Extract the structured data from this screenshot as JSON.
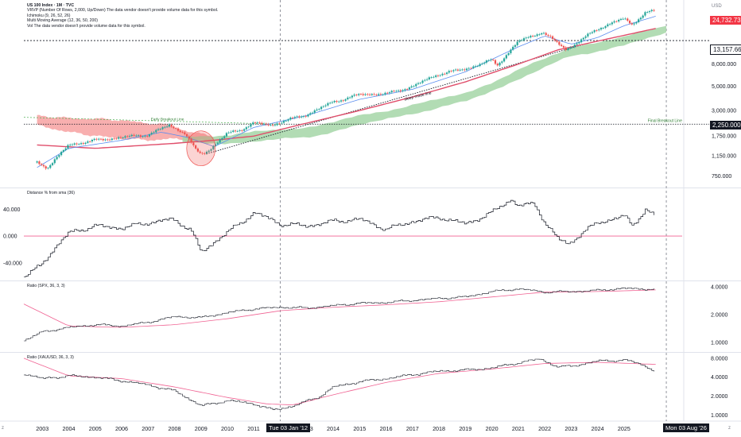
{
  "legend": {
    "title": "US 100 Index · 1M · TVC",
    "lines": [
      "VRVP (Number Of Rows, 2,000, Up/Down) The data vendor doesn't provide volume data for this symbol.",
      "Ichimoku (9, 26, 52, 26)",
      "Multi Moving Average (12, 36, 50, 200)",
      "Vol The data vendor doesn't provide volume data for this symbol."
    ]
  },
  "currency": "USD",
  "pane_labels": {
    "distance": "Distance % from sma (36)",
    "ratio_spx": "Ratio (SPX, 36, 3, 3)",
    "ratio_xau": "Ratio (XAUUSD, 36, 3, 3)"
  },
  "annotations": {
    "early_breakout": "Early Breakout Line",
    "final_breakout": "Final Breakout Line",
    "sleep_mode": "sleep mode line"
  },
  "price_tags": {
    "last": "24,732.732",
    "level_high": "13,157.664",
    "level_low": "2,250.000"
  },
  "crosshair_tags": {
    "left_date": "Tue 03 Jan '12",
    "right_date": "Mon 03 Aug '26"
  },
  "corner_labels": {
    "left": "z",
    "right": "z"
  },
  "colors": {
    "up": "#26a69a",
    "down": "#ef5350",
    "cloud_green": "#a5d6a7",
    "cloud_red": "#f7a1a1",
    "ma_red": "#e04e6b",
    "ma_blue": "#5b8def",
    "pane_line": "#131722",
    "ref_red": "#f06292"
  },
  "chart_data": {
    "type": "line",
    "title": "US 100 Index · 1M · TVC",
    "x_tick_labels": [
      "2003",
      "2004",
      "2005",
      "2006",
      "2007",
      "2008",
      "2009",
      "2010",
      "2011",
      "2012",
      "2013",
      "2014",
      "2015",
      "2016",
      "2017",
      "2018",
      "2019",
      "2020",
      "2021",
      "2022",
      "2023",
      "2024",
      "2025"
    ],
    "x_range": [
      2002.3,
      2027.2
    ],
    "price_pane": {
      "scale": "log",
      "ylim": [
        600,
        31000
      ],
      "y_tick_labels": [
        "8,000.000",
        "5,000.000",
        "3,000.000",
        "1,750.000",
        "1,150.000",
        "750.000"
      ],
      "y_ticks": [
        8000,
        5000,
        3000,
        1750,
        1150,
        750
      ],
      "price_keypoints": {
        "x": [
          2002.8,
          2003.2,
          2004.0,
          2005.0,
          2006.0,
          2007.0,
          2007.8,
          2008.4,
          2008.8,
          2009.0,
          2009.3,
          2010.0,
          2010.5,
          2011.0,
          2011.7,
          2012.0,
          2013.0,
          2014.0,
          2015.0,
          2016.1,
          2017.0,
          2018.0,
          2019.0,
          2020.0,
          2020.2,
          2021.0,
          2021.9,
          2022.8,
          2023.0,
          2024.0,
          2025.0,
          2025.3,
          2025.8,
          2026.2
        ],
        "y": [
          1000,
          900,
          1450,
          1600,
          1700,
          1800,
          2200,
          1850,
          1300,
          1200,
          1300,
          1850,
          2000,
          2300,
          2200,
          2350,
          2750,
          3600,
          4200,
          4300,
          5000,
          6500,
          7200,
          8700,
          7800,
          12900,
          15800,
          11000,
          11500,
          16900,
          21000,
          18500,
          23500,
          24732
        ]
      },
      "ma_long": {
        "x": [
          2002.8,
          2005.0,
          2008.0,
          2009.5,
          2011.0,
          2013.0,
          2015.0,
          2017.0,
          2019.0,
          2021.0,
          2022.5,
          2024.0,
          2026.2
        ],
        "y": [
          1450,
          1350,
          1500,
          1600,
          1750,
          2300,
          3000,
          4000,
          5500,
          8000,
          10800,
          13000,
          17000
        ]
      },
      "ma_blue": {
        "x": [
          2002.8,
          2004.0,
          2006.0,
          2007.5,
          2008.5,
          2009.5,
          2011.0,
          2013.0,
          2015.0,
          2017.0,
          2019.0,
          2021.0,
          2022.0,
          2023.0,
          2024.0,
          2025.0,
          2026.2
        ],
        "y": [
          900,
          1350,
          1600,
          1900,
          1700,
          1400,
          2100,
          2700,
          3800,
          4700,
          6800,
          11500,
          14500,
          12200,
          14000,
          18000,
          22000
        ]
      },
      "cloud_green": {
        "x": [
          2008.3,
          2010.0,
          2013.0,
          2016.0,
          2019.0,
          2021.0,
          2023.0,
          2025.0,
          2026.6
        ],
        "top": [
          1700,
          1800,
          2100,
          3000,
          4300,
          7000,
          11500,
          14000,
          18500
        ],
        "bottom": [
          1500,
          1500,
          1700,
          2500,
          3600,
          5800,
          9500,
          11800,
          15500
        ]
      },
      "cloud_red": {
        "x": [
          2002.8,
          2004.0,
          2005.5,
          2007.0,
          2007.8,
          2008.6,
          2009.5
        ],
        "top": [
          2700,
          2550,
          2500,
          2300,
          2200,
          1900,
          1750
        ],
        "bottom": [
          2200,
          1900,
          1700,
          1600,
          1650,
          1600,
          1600
        ]
      },
      "horizontal_levels": [
        13157.664,
        2250
      ],
      "early_breakout_line": {
        "x": [
          2002.3,
          2012.0
        ],
        "y": [
          2600,
          2250
        ]
      },
      "sleep_mode_line": {
        "x": [
          2009.2,
          2023.5
        ],
        "y": [
          1200,
          12200
        ]
      }
    },
    "distance_pane": {
      "ylim": [
        -65,
        70
      ],
      "y_tick_labels": [
        "40.000",
        "0.000",
        "-40.000"
      ],
      "y_ticks": [
        40,
        0,
        -40
      ],
      "reference_line": 0,
      "keypoints": {
        "x": [
          2002.3,
          2002.9,
          2003.4,
          2004.0,
          2005.0,
          2006.0,
          2007.0,
          2007.9,
          2008.6,
          2009.0,
          2009.6,
          2010.5,
          2011.0,
          2011.6,
          2012.0,
          2013.0,
          2014.0,
          2015.0,
          2016.0,
          2017.0,
          2018.0,
          2019.0,
          2020.0,
          2020.7,
          2021.0,
          2021.6,
          2022.0,
          2022.5,
          2022.9,
          2023.4,
          2024.0,
          2025.0,
          2025.3,
          2025.8,
          2026.2
        ],
        "y": [
          -60,
          -45,
          -20,
          5,
          15,
          12,
          20,
          25,
          10,
          -25,
          -5,
          20,
          35,
          25,
          18,
          15,
          22,
          25,
          10,
          22,
          28,
          18,
          35,
          55,
          45,
          48,
          20,
          -5,
          -12,
          5,
          20,
          30,
          15,
          40,
          28
        ]
      }
    },
    "ratio_spx_pane": {
      "ylim": [
        0.8,
        4.5
      ],
      "y_tick_labels": [
        "4.0000",
        "2.0000",
        "1.0000"
      ],
      "y_ticks": [
        4,
        2,
        1
      ],
      "ratio_keypoints": {
        "x": [
          2002.3,
          2003.0,
          2004.0,
          2005.0,
          2006.0,
          2007.0,
          2008.0,
          2009.0,
          2010.0,
          2011.0,
          2012.0,
          2013.0,
          2014.0,
          2015.0,
          2016.0,
          2017.0,
          2018.0,
          2019.0,
          2020.0,
          2021.0,
          2022.0,
          2023.0,
          2024.0,
          2025.0,
          2026.2
        ],
        "y": [
          1.05,
          1.3,
          1.45,
          1.55,
          1.5,
          1.65,
          1.9,
          1.85,
          2.1,
          2.3,
          2.4,
          2.35,
          2.5,
          2.65,
          2.7,
          2.85,
          3.0,
          3.1,
          3.55,
          3.8,
          3.5,
          3.55,
          3.65,
          3.85,
          3.75
        ]
      },
      "signal_keypoints": {
        "x": [
          2002.3,
          2004.0,
          2006.0,
          2008.0,
          2010.0,
          2012.0,
          2014.0,
          2016.0,
          2018.0,
          2020.0,
          2022.0,
          2024.0,
          2026.2
        ],
        "y": [
          2.6,
          1.5,
          1.45,
          1.55,
          1.8,
          2.2,
          2.4,
          2.55,
          2.75,
          3.1,
          3.5,
          3.55,
          3.7
        ]
      }
    },
    "ratio_xau_pane": {
      "ylim": [
        0.8,
        9.5
      ],
      "y_tick_labels": [
        "8.0000",
        "4.0000",
        "2.0000",
        "1.0000"
      ],
      "y_ticks": [
        8,
        4,
        2,
        1
      ],
      "ratio_keypoints": {
        "x": [
          2002.3,
          2003.0,
          2004.0,
          2005.0,
          2006.0,
          2007.0,
          2008.0,
          2009.0,
          2010.0,
          2011.0,
          2011.7,
          2012.5,
          2013.5,
          2014.0,
          2015.0,
          2016.0,
          2017.0,
          2018.0,
          2019.0,
          2020.0,
          2021.0,
          2021.8,
          2022.5,
          2023.0,
          2024.0,
          2025.0,
          2025.6,
          2026.2
        ],
        "y": [
          4.5,
          3.8,
          4.2,
          4.0,
          3.5,
          3.0,
          2.4,
          1.4,
          1.7,
          1.5,
          1.2,
          1.4,
          2.0,
          2.8,
          3.4,
          3.8,
          4.4,
          5.0,
          5.2,
          5.6,
          6.8,
          7.8,
          5.8,
          6.0,
          7.2,
          7.5,
          6.5,
          4.9
        ]
      },
      "signal_keypoints": {
        "x": [
          2002.3,
          2004.0,
          2006.0,
          2008.0,
          2010.0,
          2011.5,
          2012.5,
          2014.0,
          2016.0,
          2018.0,
          2020.0,
          2022.0,
          2024.0,
          2026.2
        ],
        "y": [
          8.0,
          4.2,
          3.8,
          2.8,
          1.9,
          1.5,
          1.45,
          2.1,
          3.3,
          4.6,
          5.4,
          6.6,
          6.9,
          6.4
        ]
      }
    },
    "crosshair_x": [
      2012.0,
      2026.6
    ],
    "pane_dividers_y_note": "four stacked panes sharing the date axis"
  }
}
